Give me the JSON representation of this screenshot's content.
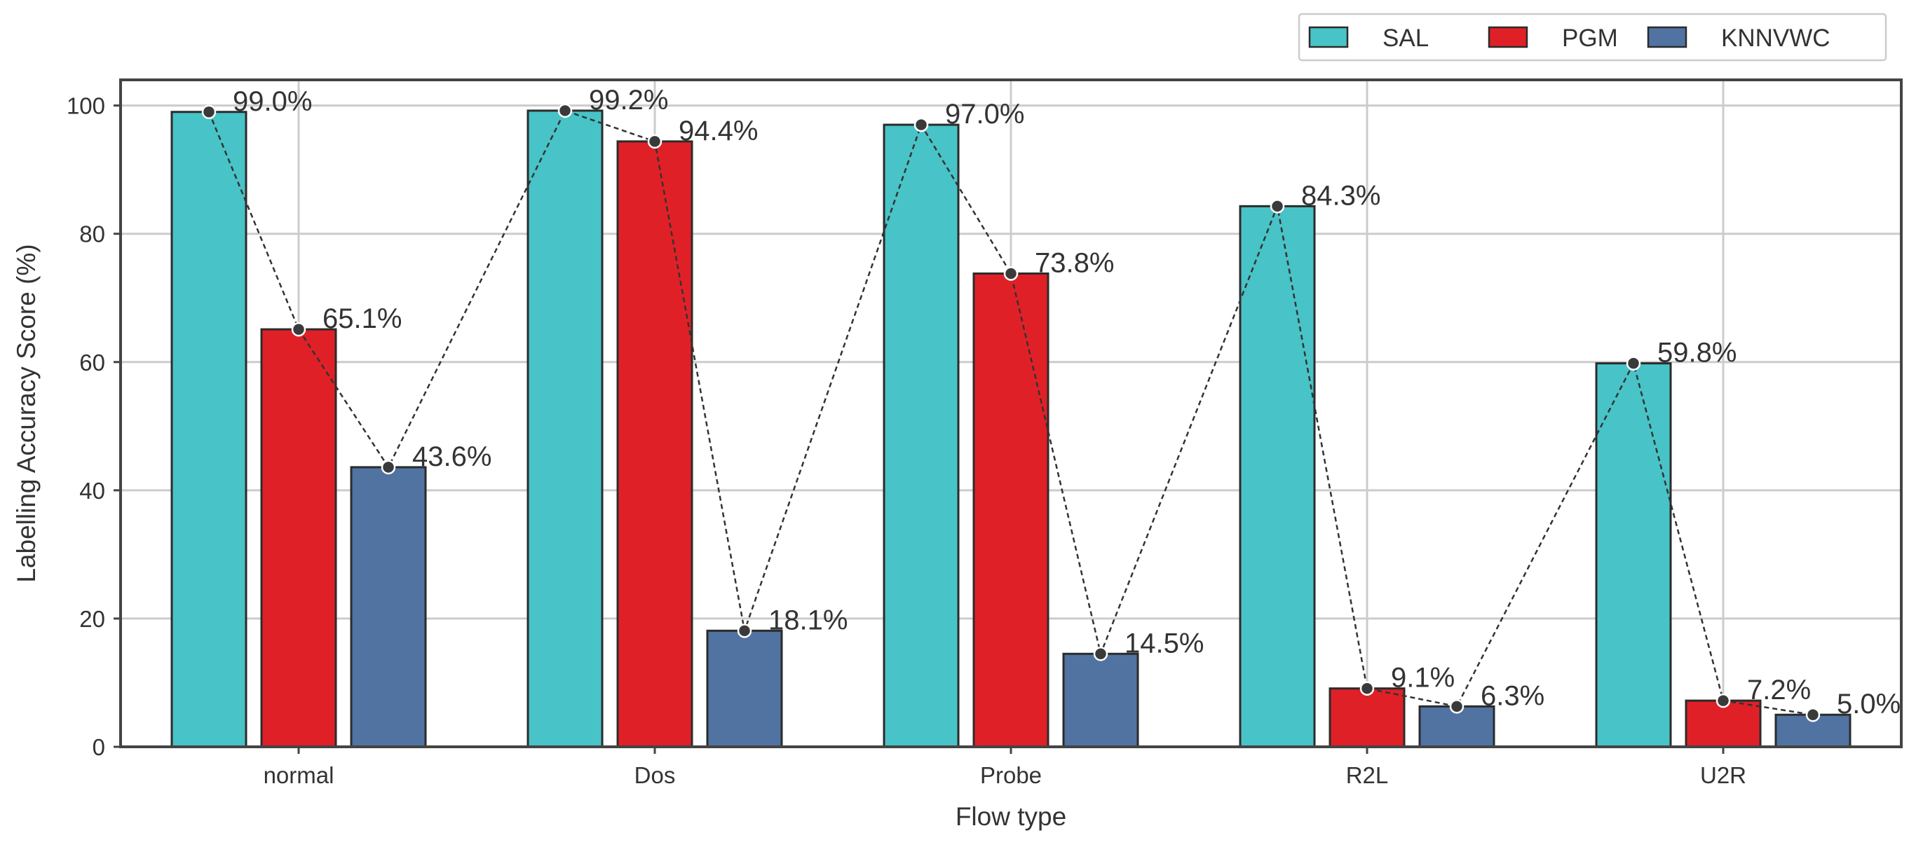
{
  "chart_data": {
    "type": "bar",
    "categories": [
      "normal",
      "Dos",
      "Probe",
      "R2L",
      "U2R"
    ],
    "series": [
      {
        "name": "SAL",
        "color": "#48c3c7",
        "values": [
          99.0,
          99.2,
          97.0,
          84.3,
          59.8
        ]
      },
      {
        "name": "PGM",
        "color": "#e02027",
        "values": [
          65.1,
          94.4,
          73.8,
          9.1,
          7.2
        ]
      },
      {
        "name": "KNNVWC",
        "color": "#5073a2",
        "values": [
          43.6,
          18.1,
          14.5,
          6.3,
          5.0
        ]
      }
    ],
    "value_labels": [
      [
        "99.0%",
        "99.2%",
        "97.0%",
        "84.3%",
        "59.8%"
      ],
      [
        "65.1%",
        "94.4%",
        "73.8%",
        "9.1%",
        "7.2%"
      ],
      [
        "43.6%",
        "18.1%",
        "14.5%",
        "6.3%",
        "5.0%"
      ]
    ],
    "xlabel": "Flow type",
    "ylabel": "Labelling Accuracy Score (%)",
    "ylim": [
      0,
      104
    ],
    "yticks": [
      0,
      20,
      40,
      60,
      80,
      100
    ],
    "grid": true,
    "legend": "top-right, outside above plot",
    "connector_line": "dashed line with markers through all bar tops"
  }
}
